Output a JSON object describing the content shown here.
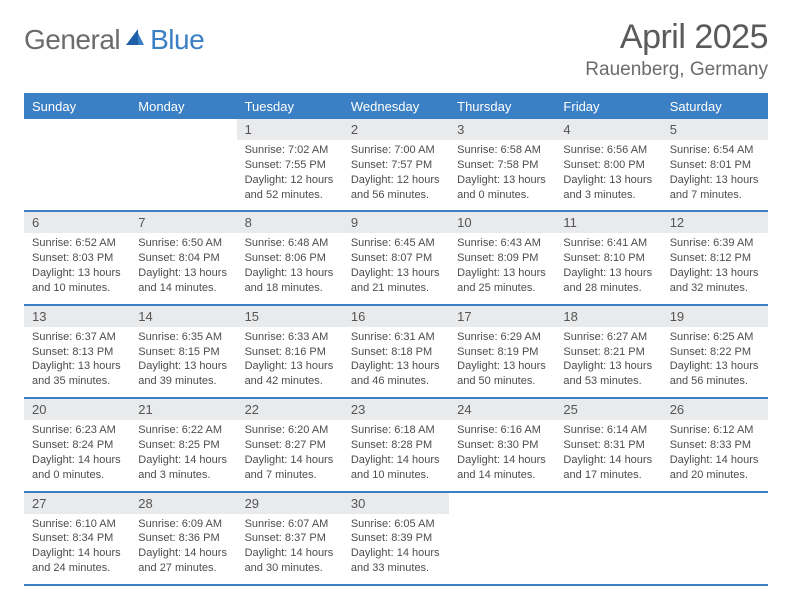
{
  "logo": {
    "word1": "General",
    "word2": "Blue"
  },
  "title": {
    "month": "April 2025",
    "location": "Rauenberg, Germany"
  },
  "colors": {
    "accent": "#3b7fc4",
    "daynum_bg": "#e9eaec",
    "text": "#4d4d4d",
    "header_text": "#ffffff",
    "page_bg": "#ffffff"
  },
  "day_headers": [
    "Sunday",
    "Monday",
    "Tuesday",
    "Wednesday",
    "Thursday",
    "Friday",
    "Saturday"
  ],
  "weeks": [
    [
      null,
      null,
      {
        "n": "1",
        "sr": "Sunrise: 7:02 AM",
        "ss": "Sunset: 7:55 PM",
        "dl": "Daylight: 12 hours and 52 minutes."
      },
      {
        "n": "2",
        "sr": "Sunrise: 7:00 AM",
        "ss": "Sunset: 7:57 PM",
        "dl": "Daylight: 12 hours and 56 minutes."
      },
      {
        "n": "3",
        "sr": "Sunrise: 6:58 AM",
        "ss": "Sunset: 7:58 PM",
        "dl": "Daylight: 13 hours and 0 minutes."
      },
      {
        "n": "4",
        "sr": "Sunrise: 6:56 AM",
        "ss": "Sunset: 8:00 PM",
        "dl": "Daylight: 13 hours and 3 minutes."
      },
      {
        "n": "5",
        "sr": "Sunrise: 6:54 AM",
        "ss": "Sunset: 8:01 PM",
        "dl": "Daylight: 13 hours and 7 minutes."
      }
    ],
    [
      {
        "n": "6",
        "sr": "Sunrise: 6:52 AM",
        "ss": "Sunset: 8:03 PM",
        "dl": "Daylight: 13 hours and 10 minutes."
      },
      {
        "n": "7",
        "sr": "Sunrise: 6:50 AM",
        "ss": "Sunset: 8:04 PM",
        "dl": "Daylight: 13 hours and 14 minutes."
      },
      {
        "n": "8",
        "sr": "Sunrise: 6:48 AM",
        "ss": "Sunset: 8:06 PM",
        "dl": "Daylight: 13 hours and 18 minutes."
      },
      {
        "n": "9",
        "sr": "Sunrise: 6:45 AM",
        "ss": "Sunset: 8:07 PM",
        "dl": "Daylight: 13 hours and 21 minutes."
      },
      {
        "n": "10",
        "sr": "Sunrise: 6:43 AM",
        "ss": "Sunset: 8:09 PM",
        "dl": "Daylight: 13 hours and 25 minutes."
      },
      {
        "n": "11",
        "sr": "Sunrise: 6:41 AM",
        "ss": "Sunset: 8:10 PM",
        "dl": "Daylight: 13 hours and 28 minutes."
      },
      {
        "n": "12",
        "sr": "Sunrise: 6:39 AM",
        "ss": "Sunset: 8:12 PM",
        "dl": "Daylight: 13 hours and 32 minutes."
      }
    ],
    [
      {
        "n": "13",
        "sr": "Sunrise: 6:37 AM",
        "ss": "Sunset: 8:13 PM",
        "dl": "Daylight: 13 hours and 35 minutes."
      },
      {
        "n": "14",
        "sr": "Sunrise: 6:35 AM",
        "ss": "Sunset: 8:15 PM",
        "dl": "Daylight: 13 hours and 39 minutes."
      },
      {
        "n": "15",
        "sr": "Sunrise: 6:33 AM",
        "ss": "Sunset: 8:16 PM",
        "dl": "Daylight: 13 hours and 42 minutes."
      },
      {
        "n": "16",
        "sr": "Sunrise: 6:31 AM",
        "ss": "Sunset: 8:18 PM",
        "dl": "Daylight: 13 hours and 46 minutes."
      },
      {
        "n": "17",
        "sr": "Sunrise: 6:29 AM",
        "ss": "Sunset: 8:19 PM",
        "dl": "Daylight: 13 hours and 50 minutes."
      },
      {
        "n": "18",
        "sr": "Sunrise: 6:27 AM",
        "ss": "Sunset: 8:21 PM",
        "dl": "Daylight: 13 hours and 53 minutes."
      },
      {
        "n": "19",
        "sr": "Sunrise: 6:25 AM",
        "ss": "Sunset: 8:22 PM",
        "dl": "Daylight: 13 hours and 56 minutes."
      }
    ],
    [
      {
        "n": "20",
        "sr": "Sunrise: 6:23 AM",
        "ss": "Sunset: 8:24 PM",
        "dl": "Daylight: 14 hours and 0 minutes."
      },
      {
        "n": "21",
        "sr": "Sunrise: 6:22 AM",
        "ss": "Sunset: 8:25 PM",
        "dl": "Daylight: 14 hours and 3 minutes."
      },
      {
        "n": "22",
        "sr": "Sunrise: 6:20 AM",
        "ss": "Sunset: 8:27 PM",
        "dl": "Daylight: 14 hours and 7 minutes."
      },
      {
        "n": "23",
        "sr": "Sunrise: 6:18 AM",
        "ss": "Sunset: 8:28 PM",
        "dl": "Daylight: 14 hours and 10 minutes."
      },
      {
        "n": "24",
        "sr": "Sunrise: 6:16 AM",
        "ss": "Sunset: 8:30 PM",
        "dl": "Daylight: 14 hours and 14 minutes."
      },
      {
        "n": "25",
        "sr": "Sunrise: 6:14 AM",
        "ss": "Sunset: 8:31 PM",
        "dl": "Daylight: 14 hours and 17 minutes."
      },
      {
        "n": "26",
        "sr": "Sunrise: 6:12 AM",
        "ss": "Sunset: 8:33 PM",
        "dl": "Daylight: 14 hours and 20 minutes."
      }
    ],
    [
      {
        "n": "27",
        "sr": "Sunrise: 6:10 AM",
        "ss": "Sunset: 8:34 PM",
        "dl": "Daylight: 14 hours and 24 minutes."
      },
      {
        "n": "28",
        "sr": "Sunrise: 6:09 AM",
        "ss": "Sunset: 8:36 PM",
        "dl": "Daylight: 14 hours and 27 minutes."
      },
      {
        "n": "29",
        "sr": "Sunrise: 6:07 AM",
        "ss": "Sunset: 8:37 PM",
        "dl": "Daylight: 14 hours and 30 minutes."
      },
      {
        "n": "30",
        "sr": "Sunrise: 6:05 AM",
        "ss": "Sunset: 8:39 PM",
        "dl": "Daylight: 14 hours and 33 minutes."
      },
      null,
      null,
      null
    ]
  ]
}
